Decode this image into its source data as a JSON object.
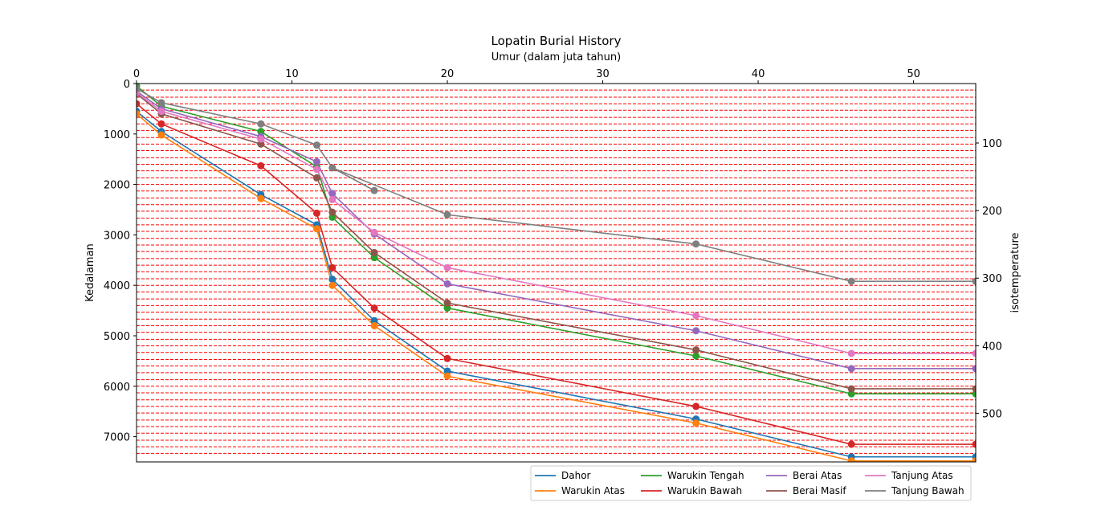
{
  "chart_data": {
    "type": "line",
    "title": "Lopatin Burial History",
    "xlabel": "Umur (dalam juta tahun)",
    "ylabel": "Kedalaman",
    "y2label": "isotemperature",
    "x_axis_position": "top",
    "y_inverted": true,
    "xlim": [
      0,
      54
    ],
    "ylim": [
      0,
      7500
    ],
    "y2lim": [
      12,
      572
    ],
    "xticks": [
      0,
      10,
      20,
      30,
      40,
      50
    ],
    "yticks": [
      0,
      1000,
      2000,
      3000,
      4000,
      5000,
      6000,
      7000
    ],
    "y2ticks": [
      100,
      200,
      300,
      400,
      500
    ],
    "isotherm_style": {
      "color": "#ff0000",
      "dashed": true
    },
    "isotherm_depths": [
      130,
      270,
      400,
      530,
      670,
      800,
      930,
      1070,
      1200,
      1330,
      1470,
      1600,
      1730,
      1870,
      2000,
      2130,
      2270,
      2400,
      2530,
      2670,
      2800,
      2930,
      3070,
      3200,
      3330,
      3470,
      3600,
      3730,
      3870,
      4000,
      4130,
      4270,
      4400,
      4530,
      4670,
      4800,
      4930,
      5070,
      5200,
      5330,
      5470,
      5600,
      5730,
      5870,
      6000,
      6130,
      6270,
      6400,
      6530,
      6670,
      6800,
      6930,
      7070,
      7200,
      7330
    ],
    "legend": {
      "position": "lower-right",
      "columns": 4
    },
    "series": [
      {
        "name": "Dahor",
        "color": "#1f77b4",
        "x": [
          0,
          1.6,
          8,
          11.6,
          12.6,
          15.3,
          20,
          36,
          46,
          54
        ],
        "y": [
          550,
          950,
          2200,
          2800,
          3880,
          4700,
          5700,
          6650,
          7400,
          7400
        ]
      },
      {
        "name": "Warukin Atas",
        "color": "#ff7f0e",
        "x": [
          0,
          1.6,
          8,
          11.6,
          12.6,
          15.3,
          20,
          36,
          46,
          54
        ],
        "y": [
          600,
          1020,
          2280,
          2880,
          4000,
          4800,
          5800,
          6730,
          7480,
          7480
        ]
      },
      {
        "name": "Warukin Tengah",
        "color": "#2ca02c",
        "x": [
          0,
          1.6,
          8,
          11.6,
          12.6,
          15.3,
          20,
          36,
          46,
          54
        ],
        "y": [
          50,
          450,
          950,
          1650,
          2650,
          3450,
          4450,
          5400,
          6150,
          6150
        ]
      },
      {
        "name": "Warukin Bawah",
        "color": "#d62728",
        "x": [
          0,
          1.6,
          8,
          11.6,
          12.6,
          15.3,
          20,
          36,
          46,
          54
        ],
        "y": [
          400,
          800,
          1630,
          2570,
          3650,
          4450,
          5450,
          6400,
          7150,
          7150
        ]
      },
      {
        "name": "Berai Atas",
        "color": "#9467bd",
        "x": [
          0,
          1.6,
          8,
          11.6,
          12.6,
          15.3,
          20,
          36,
          46,
          54
        ],
        "y": [
          150,
          500,
          1050,
          1550,
          2180,
          2980,
          3970,
          4900,
          5650,
          5650
        ]
      },
      {
        "name": "Berai Masif",
        "color": "#8c564b",
        "x": [
          0,
          1.6,
          8,
          11.6,
          12.6,
          15.3,
          20,
          36,
          46,
          54
        ],
        "y": [
          200,
          600,
          1200,
          1870,
          2550,
          3350,
          4350,
          5280,
          6050,
          6050
        ]
      },
      {
        "name": "Tanjung Atas",
        "color": "#e377c2",
        "x": [
          0,
          1.6,
          8,
          11.6,
          12.6,
          15.3,
          20,
          36,
          46,
          54
        ],
        "y": [
          180,
          550,
          1100,
          1700,
          2300,
          2950,
          3650,
          4600,
          5350,
          5350
        ]
      },
      {
        "name": "Tanjung Bawah",
        "color": "#7f7f7f",
        "x": [
          0,
          1.6,
          8,
          11.6,
          12.6,
          20,
          36,
          46,
          54
        ],
        "y": [
          100,
          380,
          800,
          1220,
          1670,
          2600,
          3180,
          3920,
          3920
        ]
      }
    ],
    "extra_segments": [
      {
        "series": "Tanjung Bawah",
        "x": [
          12.6,
          15.3
        ],
        "y": [
          1670,
          2120
        ]
      }
    ]
  }
}
